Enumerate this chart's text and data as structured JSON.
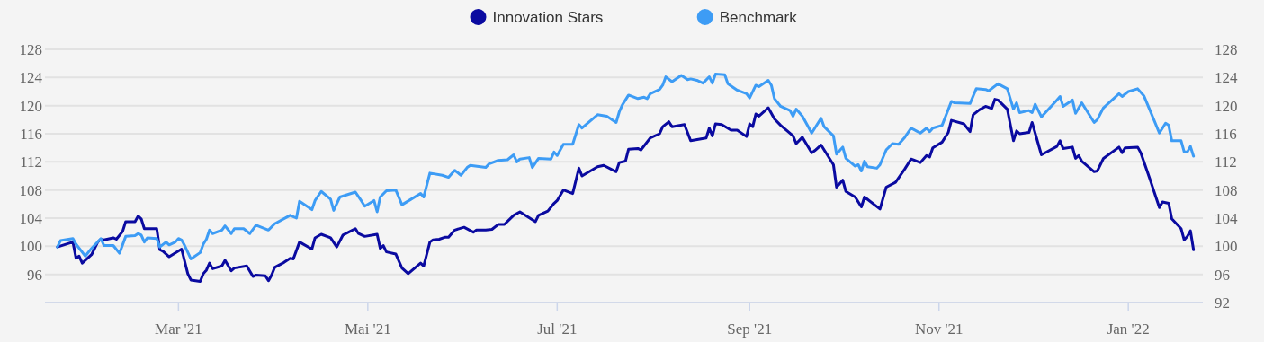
{
  "chart_data": {
    "type": "line",
    "xlim": [
      "2021-01-17",
      "2022-01-25"
    ],
    "xticks": [
      {
        "value": "2021-03-01",
        "label": "Mar '21"
      },
      {
        "value": "2021-05-01",
        "label": "Mai '21"
      },
      {
        "value": "2021-07-01",
        "label": "Jul '21"
      },
      {
        "value": "2021-09-01",
        "label": "Sep '21"
      },
      {
        "value": "2021-11-01",
        "label": "Nov '21"
      },
      {
        "value": "2022-01-01",
        "label": "Jan '22"
      }
    ],
    "ylim": [
      92,
      128
    ],
    "yticks": [
      {
        "value": 92,
        "label": null
      },
      96,
      100,
      104,
      108,
      112,
      116,
      120,
      124,
      128
    ],
    "y2lim": [
      92,
      128
    ],
    "y2ticks": [
      92,
      96,
      100,
      104,
      108,
      112,
      116,
      120,
      124,
      128
    ],
    "grid": "y",
    "legend": "top",
    "marker": "none",
    "series": [
      {
        "name": "Innovation Stars",
        "color": "#0a0aa0",
        "x": [
          "2021-01-21",
          "2021-01-26",
          "2021-01-27",
          "2021-01-28",
          "2021-01-29",
          "2021-02-01",
          "2021-02-03",
          "2021-02-04",
          "2021-02-05",
          "2021-02-08",
          "2021-02-09",
          "2021-02-11",
          "2021-02-12",
          "2021-02-15",
          "2021-02-16",
          "2021-02-17",
          "2021-02-18",
          "2021-02-22",
          "2021-02-23",
          "2021-02-24",
          "2021-02-26",
          "2021-03-02",
          "2021-03-04",
          "2021-03-05",
          "2021-03-08",
          "2021-03-09",
          "2021-03-10",
          "2021-03-11",
          "2021-03-12",
          "2021-03-15",
          "2021-03-16",
          "2021-03-18",
          "2021-03-19",
          "2021-03-23",
          "2021-03-25",
          "2021-03-26",
          "2021-03-29",
          "2021-03-30",
          "2021-03-31",
          "2021-04-01",
          "2021-04-04",
          "2021-04-06",
          "2021-04-07",
          "2021-04-09",
          "2021-04-13",
          "2021-04-14",
          "2021-04-16",
          "2021-04-19",
          "2021-04-21",
          "2021-04-23",
          "2021-04-27",
          "2021-04-28",
          "2021-04-30",
          "2021-05-04",
          "2021-05-05",
          "2021-05-06",
          "2021-05-07",
          "2021-05-10",
          "2021-05-12",
          "2021-05-14",
          "2021-05-18",
          "2021-05-19",
          "2021-05-21",
          "2021-05-22",
          "2021-05-24",
          "2021-05-26",
          "2021-05-27",
          "2021-05-29",
          "2021-06-01",
          "2021-06-04",
          "2021-06-05",
          "2021-06-08",
          "2021-06-10",
          "2021-06-12",
          "2021-06-14",
          "2021-06-17",
          "2021-06-19",
          "2021-06-24",
          "2021-06-25",
          "2021-06-28",
          "2021-06-30",
          "2021-07-01",
          "2021-07-03",
          "2021-07-06",
          "2021-07-08",
          "2021-07-09",
          "2021-07-14",
          "2021-07-16",
          "2021-07-20",
          "2021-07-21",
          "2021-07-23",
          "2021-07-24",
          "2021-07-27",
          "2021-07-28",
          "2021-07-31",
          "2021-08-03",
          "2021-08-04",
          "2021-08-06",
          "2021-08-07",
          "2021-08-11",
          "2021-08-13",
          "2021-08-18",
          "2021-08-19",
          "2021-08-20",
          "2021-08-21",
          "2021-08-23",
          "2021-08-26",
          "2021-08-28",
          "2021-08-31",
          "2021-09-01",
          "2021-09-02",
          "2021-09-03",
          "2021-09-04",
          "2021-09-07",
          "2021-09-09",
          "2021-09-11",
          "2021-09-15",
          "2021-09-16",
          "2021-09-18",
          "2021-09-21",
          "2021-09-22",
          "2021-09-24",
          "2021-09-28",
          "2021-09-29",
          "2021-10-01",
          "2021-10-02",
          "2021-10-05",
          "2021-10-07",
          "2021-10-08",
          "2021-10-13",
          "2021-10-15",
          "2021-10-18",
          "2021-10-21",
          "2021-10-23",
          "2021-10-26",
          "2021-10-28",
          "2021-10-29",
          "2021-10-30",
          "2021-11-02",
          "2021-11-04",
          "2021-11-05",
          "2021-11-09",
          "2021-11-11",
          "2021-11-12",
          "2021-11-14",
          "2021-11-16",
          "2021-11-18",
          "2021-11-19",
          "2021-11-20",
          "2021-11-23",
          "2021-11-25",
          "2021-11-26",
          "2021-11-27",
          "2021-11-30",
          "2021-12-01",
          "2021-12-04",
          "2021-12-09",
          "2021-12-10",
          "2021-12-11",
          "2021-12-14",
          "2021-12-15",
          "2021-12-16",
          "2021-12-17",
          "2021-12-21",
          "2021-12-22",
          "2021-12-24",
          "2021-12-29",
          "2021-12-30",
          "2021-12-31",
          "2022-01-04",
          "2022-01-05",
          "2022-01-08",
          "2022-01-11",
          "2022-01-12",
          "2022-01-14",
          "2022-01-15",
          "2022-01-18",
          "2022-01-19",
          "2022-01-20",
          "2022-01-21",
          "2022-01-22"
        ],
        "values": [
          99.9,
          100.6,
          98.3,
          98.6,
          97.6,
          98.8,
          100.6,
          101.0,
          100.9,
          101.2,
          101.0,
          102.1,
          103.5,
          103.5,
          104.3,
          103.9,
          102.5,
          102.5,
          99.5,
          99.3,
          98.5,
          99.6,
          96.1,
          95.2,
          95.0,
          96.1,
          96.6,
          97.6,
          96.8,
          97.2,
          98.0,
          96.5,
          96.9,
          97.2,
          95.7,
          95.9,
          95.8,
          95.1,
          95.9,
          97.0,
          97.7,
          98.3,
          98.2,
          100.6,
          99.6,
          101.2,
          101.7,
          101.2,
          99.9,
          101.6,
          102.5,
          101.8,
          101.4,
          101.7,
          99.7,
          100.1,
          99.2,
          98.9,
          96.9,
          96.1,
          97.6,
          97.2,
          100.6,
          100.9,
          101.0,
          101.3,
          101.3,
          102.3,
          102.7,
          102.0,
          102.3,
          102.3,
          102.4,
          103.1,
          103.1,
          104.4,
          104.9,
          103.5,
          104.4,
          105.0,
          106.1,
          106.5,
          108.0,
          107.5,
          111.1,
          110.0,
          111.3,
          111.5,
          110.6,
          111.9,
          112.1,
          113.8,
          113.9,
          113.7,
          115.4,
          116.0,
          117.0,
          117.7,
          117.0,
          117.3,
          115.0,
          115.4,
          116.8,
          115.7,
          117.4,
          117.3,
          116.5,
          116.5,
          115.6,
          117.4,
          117.0,
          118.8,
          118.5,
          119.7,
          118.1,
          117.2,
          115.7,
          114.6,
          115.5,
          113.3,
          113.6,
          114.4,
          111.6,
          108.4,
          109.4,
          107.8,
          107.0,
          105.6,
          107.0,
          105.3,
          108.4,
          109.1,
          111.0,
          112.4,
          111.9,
          112.9,
          112.7,
          114.0,
          114.8,
          116.2,
          117.9,
          117.4,
          116.3,
          118.7,
          119.4,
          119.9,
          119.6,
          120.9,
          120.8,
          119.5,
          115.0,
          116.4,
          116.0,
          116.2,
          117.6,
          113.0,
          114.2,
          115.0,
          113.9,
          114.1,
          112.5,
          112.9,
          112.1,
          110.6,
          110.7,
          112.5,
          114.1,
          113.3,
          114.0,
          114.1,
          113.3,
          109.5,
          105.5,
          106.3,
          106.1,
          103.9,
          102.5,
          100.9,
          101.4,
          102.2,
          99.5
        ]
      },
      {
        "name": "Benchmark",
        "color": "#3d9cf5",
        "x": [
          "2021-01-21",
          "2021-01-22",
          "2021-01-26",
          "2021-01-27",
          "2021-01-30",
          "2021-02-01",
          "2021-02-04",
          "2021-02-05",
          "2021-02-08",
          "2021-02-10",
          "2021-02-12",
          "2021-02-15",
          "2021-02-16",
          "2021-02-17",
          "2021-02-18",
          "2021-02-19",
          "2021-02-22",
          "2021-02-23",
          "2021-02-25",
          "2021-02-26",
          "2021-02-28",
          "2021-03-01",
          "2021-03-02",
          "2021-03-03",
          "2021-03-05",
          "2021-03-08",
          "2021-03-09",
          "2021-03-10",
          "2021-03-11",
          "2021-03-12",
          "2021-03-15",
          "2021-03-16",
          "2021-03-18",
          "2021-03-19",
          "2021-03-22",
          "2021-03-24",
          "2021-03-26",
          "2021-03-30",
          "2021-04-01",
          "2021-04-06",
          "2021-04-08",
          "2021-04-09",
          "2021-04-13",
          "2021-04-14",
          "2021-04-16",
          "2021-04-19",
          "2021-04-20",
          "2021-04-22",
          "2021-04-27",
          "2021-04-29",
          "2021-04-30",
          "2021-05-03",
          "2021-05-04",
          "2021-05-05",
          "2021-05-07",
          "2021-05-10",
          "2021-05-12",
          "2021-05-15",
          "2021-05-18",
          "2021-05-19",
          "2021-05-21",
          "2021-05-25",
          "2021-05-27",
          "2021-05-29",
          "2021-05-31",
          "2021-06-02",
          "2021-06-03",
          "2021-06-08",
          "2021-06-09",
          "2021-06-12",
          "2021-06-15",
          "2021-06-17",
          "2021-06-18",
          "2021-06-19",
          "2021-06-22",
          "2021-06-23",
          "2021-06-25",
          "2021-06-29",
          "2021-06-30",
          "2021-07-01",
          "2021-07-03",
          "2021-07-06",
          "2021-07-08",
          "2021-07-09",
          "2021-07-14",
          "2021-07-17",
          "2021-07-20",
          "2021-07-21",
          "2021-07-22",
          "2021-07-24",
          "2021-07-27",
          "2021-07-29",
          "2021-07-30",
          "2021-07-31",
          "2021-08-03",
          "2021-08-04",
          "2021-08-05",
          "2021-08-07",
          "2021-08-10",
          "2021-08-12",
          "2021-08-13",
          "2021-08-15",
          "2021-08-17",
          "2021-08-19",
          "2021-08-20",
          "2021-08-21",
          "2021-08-24",
          "2021-08-25",
          "2021-08-26",
          "2021-08-28",
          "2021-08-31",
          "2021-09-01",
          "2021-09-03",
          "2021-09-04",
          "2021-09-07",
          "2021-09-08",
          "2021-09-09",
          "2021-09-11",
          "2021-09-14",
          "2021-09-15",
          "2021-09-16",
          "2021-09-18",
          "2021-09-21",
          "2021-09-24",
          "2021-09-25",
          "2021-09-28",
          "2021-09-29",
          "2021-10-01",
          "2021-10-02",
          "2021-10-05",
          "2021-10-06",
          "2021-10-07",
          "2021-10-08",
          "2021-10-09",
          "2021-10-12",
          "2021-10-13",
          "2021-10-15",
          "2021-10-17",
          "2021-10-19",
          "2021-10-21",
          "2021-10-23",
          "2021-10-26",
          "2021-10-28",
          "2021-10-29",
          "2021-10-30",
          "2021-11-02",
          "2021-11-05",
          "2021-11-06",
          "2021-11-11",
          "2021-11-13",
          "2021-11-16",
          "2021-11-17",
          "2021-11-20",
          "2021-11-23",
          "2021-11-25",
          "2021-11-26",
          "2021-11-27",
          "2021-11-30",
          "2021-12-01",
          "2021-12-02",
          "2021-12-04",
          "2021-12-09",
          "2021-12-10",
          "2021-12-11",
          "2021-12-14",
          "2021-12-15",
          "2021-12-17",
          "2021-12-21",
          "2021-12-22",
          "2021-12-24",
          "2021-12-29",
          "2021-12-30",
          "2022-01-01",
          "2022-01-04",
          "2022-01-06",
          "2022-01-08",
          "2022-01-11",
          "2022-01-13",
          "2022-01-14",
          "2022-01-15",
          "2022-01-18",
          "2022-01-19",
          "2022-01-20",
          "2022-01-21",
          "2022-01-22"
        ],
        "values": [
          99.9,
          100.8,
          101.1,
          100.3,
          98.6,
          99.7,
          101.1,
          100.1,
          100.1,
          99.0,
          101.4,
          101.5,
          101.8,
          101.6,
          100.6,
          101.2,
          101.1,
          99.9,
          100.6,
          100.2,
          100.6,
          101.1,
          100.9,
          100.1,
          98.2,
          99.1,
          100.3,
          101.0,
          102.3,
          101.8,
          102.3,
          102.9,
          101.8,
          102.5,
          102.5,
          101.8,
          103.0,
          102.3,
          103.2,
          104.4,
          104.0,
          106.4,
          105.2,
          106.5,
          107.8,
          106.7,
          105.1,
          107.0,
          107.7,
          106.4,
          105.7,
          106.5,
          104.9,
          107.0,
          107.9,
          108.0,
          105.9,
          106.7,
          107.5,
          107.0,
          110.4,
          110.1,
          109.8,
          110.8,
          110.1,
          111.2,
          111.5,
          111.2,
          111.7,
          112.2,
          112.3,
          113.0,
          112.0,
          112.4,
          112.6,
          111.2,
          112.5,
          112.4,
          113.4,
          112.9,
          114.5,
          114.5,
          117.3,
          116.8,
          118.7,
          118.5,
          117.6,
          119.1,
          120.1,
          121.5,
          121.0,
          121.2,
          121.0,
          121.7,
          122.3,
          122.9,
          124.1,
          123.4,
          124.3,
          123.7,
          123.8,
          123.6,
          123.2,
          124.1,
          123.2,
          124.5,
          124.4,
          123.1,
          122.8,
          122.2,
          121.7,
          121.1,
          122.9,
          122.7,
          123.6,
          122.9,
          121.0,
          119.9,
          119.3,
          118.5,
          119.5,
          118.5,
          116.1,
          118.2,
          117.0,
          115.7,
          113.1,
          114.1,
          112.5,
          111.4,
          111.6,
          110.7,
          112.1,
          111.3,
          111.1,
          111.6,
          113.7,
          114.6,
          114.5,
          115.5,
          116.8,
          116.1,
          116.8,
          116.3,
          116.8,
          117.2,
          120.6,
          120.4,
          120.3,
          122.4,
          122.3,
          122.1,
          123.1,
          122.4,
          119.5,
          120.4,
          119.0,
          119.3,
          119.0,
          120.2,
          118.4,
          120.8,
          121.3,
          119.9,
          120.8,
          118.9,
          120.4,
          117.6,
          118.0,
          119.7,
          121.7,
          121.3,
          122.0,
          122.4,
          121.4,
          119.3,
          116.1,
          117.5,
          117.2,
          115.0,
          115.0,
          113.4,
          113.4,
          114.2,
          112.8
        ]
      }
    ]
  }
}
